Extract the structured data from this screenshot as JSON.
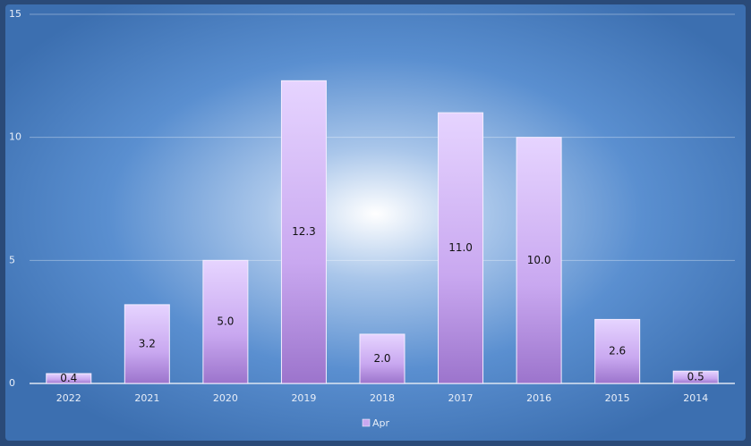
{
  "chart_data": {
    "type": "bar",
    "categories": [
      "2022",
      "2021",
      "2020",
      "2019",
      "2018",
      "2017",
      "2016",
      "2015",
      "2014"
    ],
    "series": [
      {
        "name": "Apr",
        "color": "#c9a8f0",
        "values": [
          0.4,
          3.2,
          5,
          12.3,
          2,
          11,
          10,
          2.6,
          0.5
        ],
        "value_labels": [
          "0.4",
          "3.2",
          "5.0",
          "12.3",
          "2.0",
          "11.0",
          "10.0",
          "2.6",
          "0.5"
        ]
      }
    ],
    "ylim": [
      0,
      15
    ],
    "yticks": [
      0,
      5,
      10,
      15
    ],
    "grid": true,
    "legend": "bottom"
  }
}
